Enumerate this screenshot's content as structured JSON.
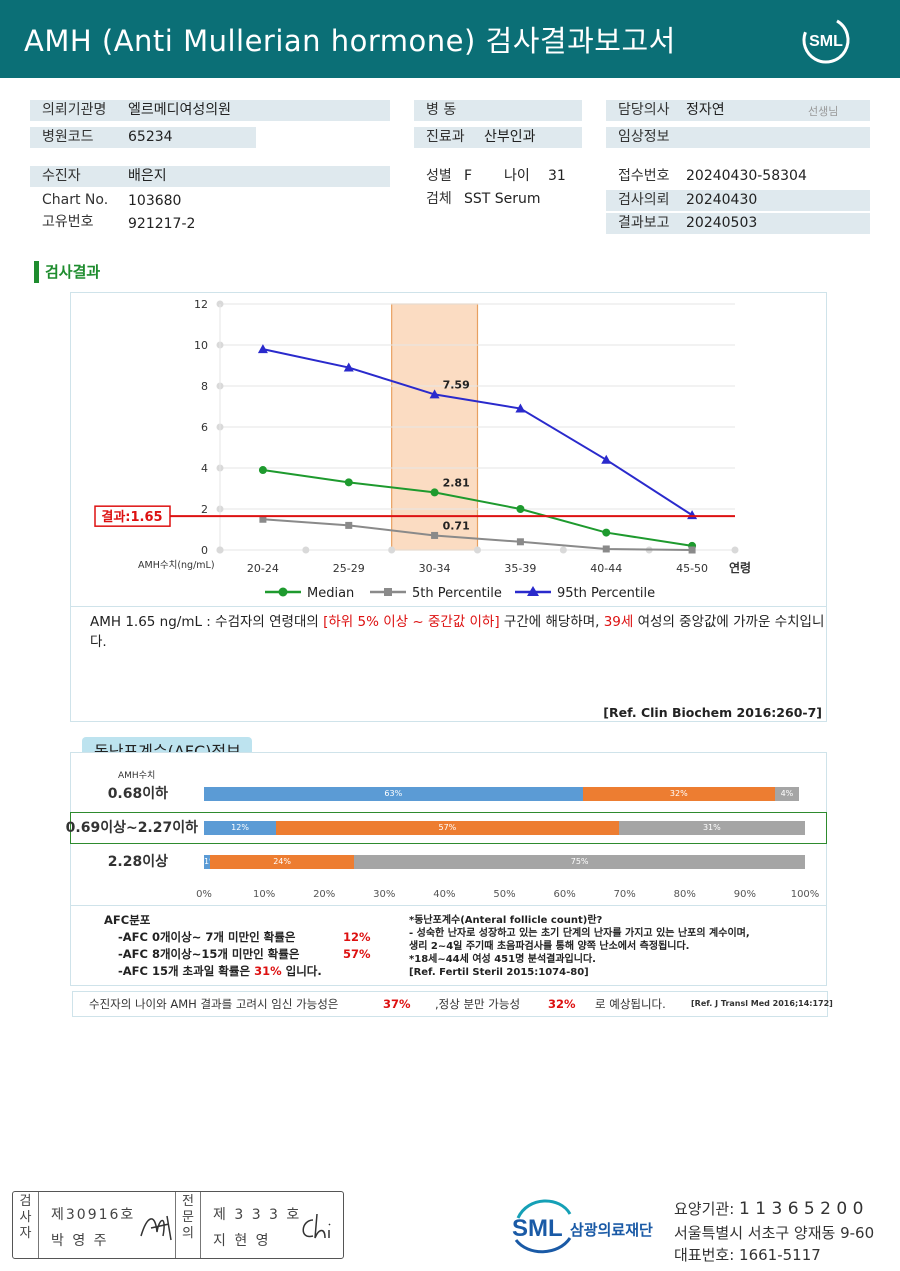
{
  "header": {
    "title": "AMH  (Anti  Mullerian  hormone) 검사결과보고서",
    "logo": "SML"
  },
  "info": {
    "institution_label": "의뢰기관명",
    "institution": "엘르메디여성의원",
    "hospital_code_label": "병원코드",
    "hospital_code": "65234",
    "ward_label": "병  동",
    "ward": "",
    "dept_label": "진료과",
    "dept": "산부인과",
    "doctor_label": "담당의사",
    "doctor": "정자연",
    "doctor_suffix": "선생님",
    "clinical_label": "임상정보",
    "clinical": "",
    "patient_label": "수진자",
    "patient": "배은지",
    "chart_label": "Chart No.",
    "chart": "103680",
    "id_label": "고유번호",
    "id": "921217-2",
    "sex_label": "성별",
    "sex": "F",
    "age_label": "나이",
    "age": "31",
    "specimen_label": "검체",
    "specimen": "SST Serum",
    "receipt_label": "접수번호",
    "receipt": "20240430-58304",
    "request_label": "검사의뢰",
    "request": "20240430",
    "report_label": "결과보고",
    "report": "20240503"
  },
  "section_title": "검사결과",
  "chart_data": {
    "type": "line",
    "categories": [
      "20-24",
      "25-29",
      "30-34",
      "35-39",
      "40-44",
      "45-50"
    ],
    "xlabel": "연령",
    "ylabel": "AMH수치(ng/mL)",
    "ylim": [
      0,
      12
    ],
    "yticks": [
      "0",
      "2",
      "4",
      "6",
      "8",
      "10",
      "12"
    ],
    "highlight_category": "30-34",
    "result_line": {
      "value": 1.65,
      "label": "결과:1.65"
    },
    "series": [
      {
        "name": "Median",
        "color": "#1e9a2e",
        "marker": "circle",
        "values": [
          3.9,
          3.3,
          2.81,
          2.0,
          0.85,
          0.2
        ]
      },
      {
        "name": "5th Percentile",
        "color": "#8a8a8a",
        "marker": "square",
        "values": [
          1.5,
          1.2,
          0.71,
          0.4,
          0.05,
          0.0
        ]
      },
      {
        "name": "95th Percentile",
        "color": "#2a2acc",
        "marker": "triangle",
        "values": [
          9.8,
          8.9,
          7.59,
          6.9,
          4.4,
          1.7
        ]
      }
    ],
    "annotations": [
      {
        "series": 0,
        "index": 2,
        "text": "2.81"
      },
      {
        "series": 1,
        "index": 2,
        "text": "0.71"
      },
      {
        "series": 2,
        "index": 2,
        "text": "7.59"
      }
    ]
  },
  "interpretation": {
    "p1": "AMH  1.65 ng/mL : 수검자의 연령대의 ",
    "p2": "[하위 5% 이상 ~ 중간값 이하]",
    "p3": "  구간에 해당하며, ",
    "p4": "39세",
    "p5": " 여성의 중앙값에 가까운 수치입니다."
  },
  "ref1": "[Ref. Clin Biochem 2016:260-7]",
  "afc": {
    "title": "동난포계수(AFC)정보",
    "ylabel": "AMH수치",
    "colors": {
      "blue": "#5b9bd5",
      "orange": "#ed7d31",
      "gray": "#a5a5a5"
    },
    "rows": [
      {
        "label": "0.68이하",
        "values": [
          63,
          32,
          4
        ],
        "texts": [
          "63%",
          "32%",
          "4%"
        ]
      },
      {
        "label": "0.69이상~2.27이하",
        "values": [
          12,
          57,
          31
        ],
        "texts": [
          "12%",
          "57%",
          "31%"
        ]
      },
      {
        "label": "2.28이상",
        "values": [
          1,
          24,
          75
        ],
        "texts": [
          "1%",
          "24%",
          "75%"
        ]
      }
    ],
    "ticks": [
      "0%",
      "10%",
      "20%",
      "30%",
      "40%",
      "50%",
      "60%",
      "70%",
      "80%",
      "90%",
      "100%"
    ],
    "dist_title": "AFC분포",
    "l1": "-AFC  0개이상~ 7개 미만인 확률은",
    "l1v": "12%",
    "l2": "-AFC  8개이상~15개 미만인 확률은",
    "l2v": "57%",
    "l3": "-AFC  15개 초과일 확률은",
    "l3v": "31%",
    "l3s": "입니다.",
    "n1": "*동난포계수(Anteral  follicle  count)란?",
    "n2": "- 성숙한 난자로 성장하고 있는 초기 단계의 난자를 가지고 있는 난포의 계수이며,",
    "n3": "   생리 2~4일 주기때 초음파검사를 통해 양쪽 난소에서 측정됩니다.",
    "n4": "*18세~44세 여성 451명 분석결과입니다.",
    "n5": "[Ref. Fertil Steril 2015:1074-80]"
  },
  "bottom": {
    "a": "수진자의  나이와 AMH 결과를 고려시 임신 가능성은",
    "b": "37%",
    "c": ",정상 분만 가능성",
    "d": "32%",
    "e": "로 예상됩니다.",
    "ref": "[Ref. J Transl Med 2016;14:172]"
  },
  "footer": {
    "examiner_col": "검사자",
    "examiner_no": "제30916호",
    "examiner_name": "박  영  주",
    "specialist_col": "전문의",
    "specialist_no": "제 3 3 3 호",
    "specialist_name": "지  현  영",
    "org": "삼광의료재단",
    "logo": "SML",
    "code_label": "요양기관: ",
    "code": "1 1 3 6 5 2 0 0",
    "address": "서울특별시 서초구 양재동 9-60",
    "phone_label": "대표번호: ",
    "phone": "1661-5117"
  }
}
